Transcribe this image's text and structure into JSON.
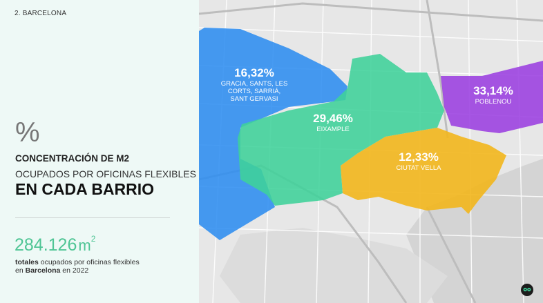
{
  "section_label": "2. BARCELONA",
  "percent_symbol": "%",
  "heading": {
    "line1": "CONCENTRACIÓN DE M2",
    "line2": "OCUPADOS POR OFICINAS FLEXIBLES",
    "line3": "EN CADA BARRIO"
  },
  "total": {
    "value": "284.126",
    "unit": "m",
    "unit_exp": "2",
    "desc_bold1": "totales",
    "desc_mid": " ocupados por oficinas flexibles en ",
    "desc_bold2": "Barcelona",
    "desc_end": " en 2022"
  },
  "districts": [
    {
      "value": "16,32%",
      "name": "GRACIA, SANTS, LES CORTS, SARRIÁ, SANT GERVASI",
      "color": "#2e8df0"
    },
    {
      "value": "29,46%",
      "name": "EIXAMPLE",
      "color": "#3fd29a"
    },
    {
      "value": "12,33%",
      "name": "CIUTAT VELLA",
      "color": "#f2b61c"
    },
    {
      "value": "33,14%",
      "name": "POBLENOU",
      "color": "#9b3fe0"
    }
  ],
  "colors": {
    "accent": "#4fc595",
    "panel": "#eef9f6"
  },
  "icons": {
    "logo": "owl-logo-icon"
  }
}
